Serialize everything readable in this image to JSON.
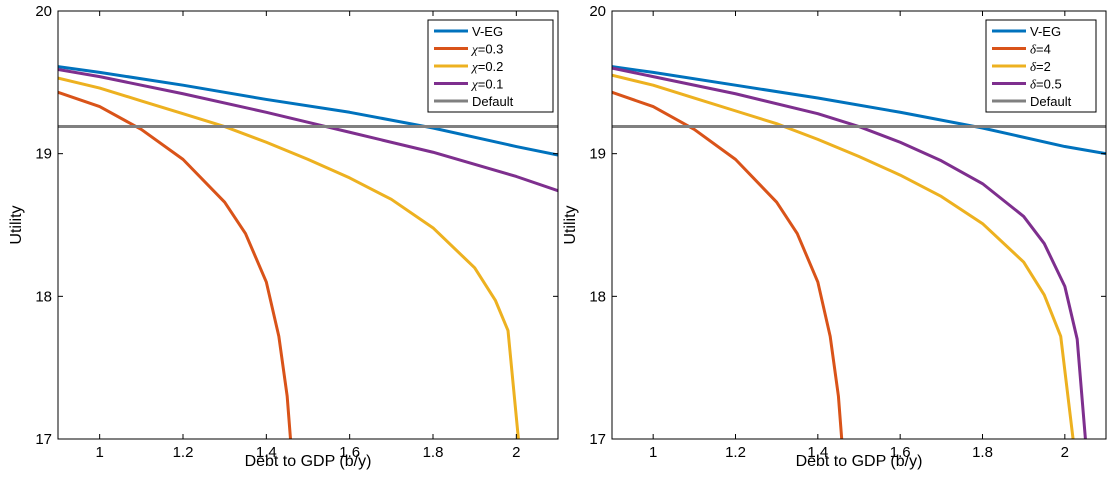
{
  "chart_data": [
    {
      "type": "line",
      "xlabel": "Debt to GDP (b/y)",
      "ylabel": "Utility",
      "xlim": [
        0.9,
        2.1
      ],
      "ylim": [
        17,
        20
      ],
      "xticks": [
        1,
        1.2,
        1.4,
        1.6,
        1.8,
        2
      ],
      "xtick_labels": [
        "1",
        "1.2",
        "1.4",
        "1.6",
        "1.8",
        "2"
      ],
      "yticks": [
        17,
        18,
        19,
        20
      ],
      "ytick_labels": [
        "17",
        "18",
        "19",
        "20"
      ],
      "grid": false,
      "legend_position": "top-right",
      "series": [
        {
          "name": "V-EG",
          "color": "#0072BD",
          "x": [
            0.9,
            1.0,
            1.2,
            1.4,
            1.6,
            1.8,
            2.0,
            2.1
          ],
          "y": [
            19.61,
            19.57,
            19.48,
            19.38,
            19.29,
            19.18,
            19.05,
            18.99
          ]
        },
        {
          "name": "χ=0.3",
          "legend_symbol": "χ",
          "legend_value": "=0.3",
          "color": "#D95319",
          "x": [
            0.9,
            1.0,
            1.1,
            1.2,
            1.3,
            1.35,
            1.4,
            1.43,
            1.45,
            1.458
          ],
          "y": [
            19.43,
            19.33,
            19.17,
            18.96,
            18.66,
            18.44,
            18.1,
            17.72,
            17.3,
            17.0
          ]
        },
        {
          "name": "χ=0.2",
          "legend_symbol": "χ",
          "legend_value": "=0.2",
          "color": "#EDB120",
          "x": [
            0.9,
            1.0,
            1.1,
            1.2,
            1.3,
            1.4,
            1.5,
            1.6,
            1.7,
            1.8,
            1.9,
            1.95,
            1.98,
            2.005
          ],
          "y": [
            19.53,
            19.46,
            19.37,
            19.28,
            19.19,
            19.08,
            18.96,
            18.83,
            18.68,
            18.48,
            18.2,
            17.97,
            17.76,
            17.0
          ]
        },
        {
          "name": "χ=0.1",
          "legend_symbol": "χ",
          "legend_value": "=0.1",
          "color": "#7E2F8E",
          "x": [
            0.9,
            1.0,
            1.2,
            1.4,
            1.6,
            1.8,
            2.0,
            2.1
          ],
          "y": [
            19.59,
            19.54,
            19.42,
            19.29,
            19.15,
            19.01,
            18.84,
            18.74
          ]
        },
        {
          "name": "Default",
          "color": "#808080",
          "x": [
            0.9,
            2.1
          ],
          "y": [
            19.19,
            19.19
          ]
        }
      ]
    },
    {
      "type": "line",
      "xlabel": "Debt to GDP (b/y)",
      "ylabel": "Utility",
      "xlim": [
        0.9,
        2.1
      ],
      "ylim": [
        17,
        20
      ],
      "xticks": [
        1,
        1.2,
        1.4,
        1.6,
        1.8,
        2
      ],
      "xtick_labels": [
        "1",
        "1.2",
        "1.4",
        "1.6",
        "1.8",
        "2"
      ],
      "yticks": [
        17,
        18,
        19,
        20
      ],
      "ytick_labels": [
        "17",
        "18",
        "19",
        "20"
      ],
      "grid": false,
      "legend_position": "top-right",
      "series": [
        {
          "name": "V-EG",
          "color": "#0072BD",
          "x": [
            0.9,
            1.0,
            1.2,
            1.4,
            1.6,
            1.8,
            2.0,
            2.1
          ],
          "y": [
            19.61,
            19.57,
            19.48,
            19.39,
            19.29,
            19.18,
            19.05,
            19.0
          ]
        },
        {
          "name": "δ=4",
          "legend_symbol": "δ",
          "legend_value": "=4",
          "color": "#D95319",
          "x": [
            0.9,
            1.0,
            1.1,
            1.2,
            1.3,
            1.35,
            1.4,
            1.43,
            1.45,
            1.458
          ],
          "y": [
            19.43,
            19.33,
            19.17,
            18.96,
            18.66,
            18.44,
            18.1,
            17.72,
            17.3,
            17.0
          ]
        },
        {
          "name": "δ=2",
          "legend_symbol": "δ",
          "legend_value": "=2",
          "color": "#EDB120",
          "x": [
            0.9,
            1.0,
            1.1,
            1.2,
            1.3,
            1.4,
            1.5,
            1.6,
            1.7,
            1.8,
            1.9,
            1.95,
            1.99,
            2.02
          ],
          "y": [
            19.55,
            19.48,
            19.39,
            19.3,
            19.21,
            19.1,
            18.98,
            18.85,
            18.7,
            18.51,
            18.24,
            18.01,
            17.72,
            17.0
          ]
        },
        {
          "name": "δ=0.5",
          "legend_symbol": "δ",
          "legend_value": "=0.5",
          "color": "#7E2F8E",
          "x": [
            0.9,
            1.0,
            1.2,
            1.4,
            1.5,
            1.6,
            1.7,
            1.8,
            1.9,
            1.95,
            2.0,
            2.03,
            2.05
          ],
          "y": [
            19.6,
            19.54,
            19.42,
            19.28,
            19.19,
            19.08,
            18.95,
            18.79,
            18.56,
            18.37,
            18.07,
            17.7,
            17.0
          ]
        },
        {
          "name": "Default",
          "color": "#808080",
          "x": [
            0.9,
            2.1
          ],
          "y": [
            19.19,
            19.19
          ]
        }
      ]
    }
  ]
}
